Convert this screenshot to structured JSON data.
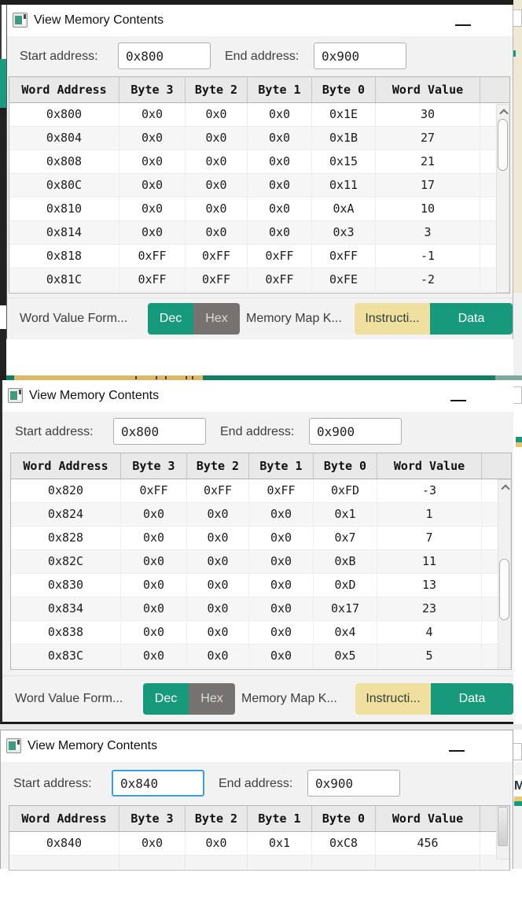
{
  "colors": {
    "accent_teal": "#17997b",
    "hex_button_gray": "#76726f",
    "instructions_yellow": "#f0e0a0",
    "map_bar_yellow": "#dcb964",
    "map_bar_teal": "#0e8066",
    "focus_blue": "#3aa0da"
  },
  "background": {
    "partial_text": "M"
  },
  "windows": [
    {
      "title": "View Memory Contents",
      "fields": {
        "start_label": "Start address:",
        "start_value": "0x800",
        "end_label": "End address:",
        "end_value": "0x900"
      },
      "table": {
        "columns": [
          "Word Address",
          "Byte 3",
          "Byte 2",
          "Byte 1",
          "Byte 0",
          "Word Value"
        ],
        "rows": [
          [
            "0x800",
            "0x0",
            "0x0",
            "0x0",
            "0x1E",
            "30"
          ],
          [
            "0x804",
            "0x0",
            "0x0",
            "0x0",
            "0x1B",
            "27"
          ],
          [
            "0x808",
            "0x0",
            "0x0",
            "0x0",
            "0x15",
            "21"
          ],
          [
            "0x80C",
            "0x0",
            "0x0",
            "0x0",
            "0x11",
            "17"
          ],
          [
            "0x810",
            "0x0",
            "0x0",
            "0x0",
            "0xA",
            "10"
          ],
          [
            "0x814",
            "0x0",
            "0x0",
            "0x0",
            "0x3",
            "3"
          ],
          [
            "0x818",
            "0xFF",
            "0xFF",
            "0xFF",
            "0xFF",
            "-1"
          ],
          [
            "0x81C",
            "0xFF",
            "0xFF",
            "0xFF",
            "0xFE",
            "-2"
          ]
        ]
      },
      "controls": {
        "format_label": "Word Value Form...",
        "dec_label": "Dec",
        "hex_label": "Hex",
        "selected_format": "Dec",
        "map_label": "Memory Map K...",
        "instructions_label": "Instructi...",
        "data_label": "Data"
      }
    },
    {
      "title": "View Memory Contents",
      "fields": {
        "start_label": "Start address:",
        "start_value": "0x800",
        "end_label": "End address:",
        "end_value": "0x900"
      },
      "table": {
        "columns": [
          "Word Address",
          "Byte 3",
          "Byte 2",
          "Byte 1",
          "Byte 0",
          "Word Value"
        ],
        "rows": [
          [
            "0x820",
            "0xFF",
            "0xFF",
            "0xFF",
            "0xFD",
            "-3"
          ],
          [
            "0x824",
            "0x0",
            "0x0",
            "0x0",
            "0x1",
            "1"
          ],
          [
            "0x828",
            "0x0",
            "0x0",
            "0x0",
            "0x7",
            "7"
          ],
          [
            "0x82C",
            "0x0",
            "0x0",
            "0x0",
            "0xB",
            "11"
          ],
          [
            "0x830",
            "0x0",
            "0x0",
            "0x0",
            "0xD",
            "13"
          ],
          [
            "0x834",
            "0x0",
            "0x0",
            "0x0",
            "0x17",
            "23"
          ],
          [
            "0x838",
            "0x0",
            "0x0",
            "0x0",
            "0x4",
            "4"
          ],
          [
            "0x83C",
            "0x0",
            "0x0",
            "0x0",
            "0x5",
            "5"
          ]
        ]
      },
      "controls": {
        "format_label": "Word Value Form...",
        "dec_label": "Dec",
        "hex_label": "Hex",
        "selected_format": "Dec",
        "map_label": "Memory Map K...",
        "instructions_label": "Instructi...",
        "data_label": "Data"
      }
    },
    {
      "title": "View Memory Contents",
      "fields": {
        "start_label": "Start address:",
        "start_value": "0x840",
        "start_focused": true,
        "end_label": "End address:",
        "end_value": "0x900"
      },
      "table": {
        "columns": [
          "Word Address",
          "Byte 3",
          "Byte 2",
          "Byte 1",
          "Byte 0",
          "Word Value"
        ],
        "rows": [
          [
            "0x840",
            "0x0",
            "0x0",
            "0x1",
            "0xC8",
            "456"
          ]
        ]
      }
    }
  ]
}
